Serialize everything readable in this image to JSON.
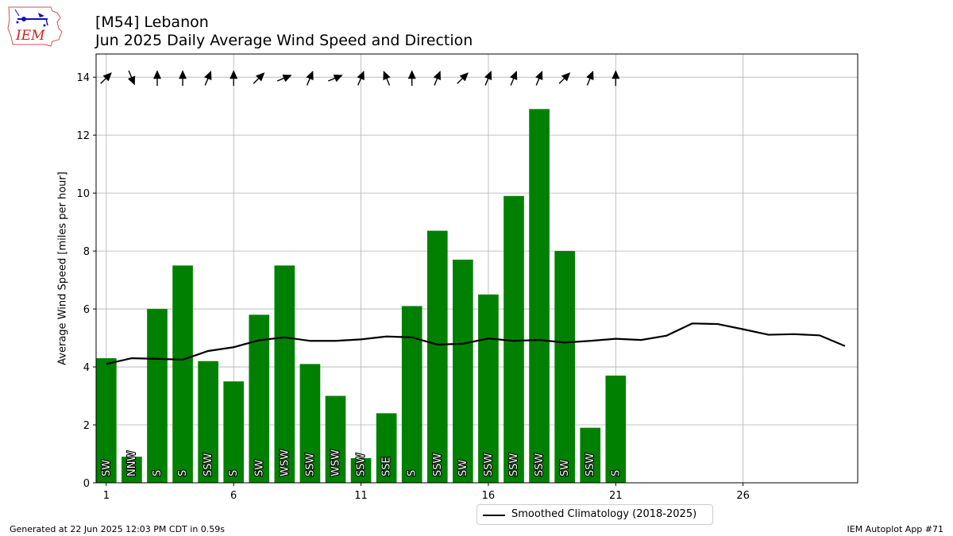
{
  "header": {
    "title_line1": "[M54] Lebanon",
    "title_line2": "Jun 2025 Daily Average Wind Speed and Direction"
  },
  "logo": {
    "text": "IEM",
    "icon": "iem-logo-icon"
  },
  "footer": {
    "generated": "Generated at 22 Jun 2025 12:03 PM CDT in 0.59s",
    "app": "IEM Autoplot App #71"
  },
  "legend": {
    "climatology_label": "Smoothed Climatology (2018-2025)"
  },
  "chart_data": {
    "type": "bar",
    "title": "[M54] Lebanon\nJun 2025 Daily Average Wind Speed and Direction",
    "xlabel": "",
    "ylabel": "Average Wind Speed [miles per hour]",
    "xlim": [
      0.6,
      30.5
    ],
    "ylim": [
      0,
      14.8
    ],
    "xticks": [
      1,
      6,
      11,
      16,
      21,
      26
    ],
    "yticks": [
      0,
      2,
      4,
      6,
      8,
      10,
      12,
      14
    ],
    "grid": true,
    "legend_position": "below-center",
    "bar_color": "#008000",
    "line_color": "#000000",
    "series": [
      {
        "type": "bar",
        "days": [
          1,
          2,
          3,
          4,
          5,
          6,
          7,
          8,
          9,
          10,
          11,
          12,
          13,
          14,
          15,
          16,
          17,
          18,
          19,
          20,
          21
        ],
        "values": [
          4.3,
          0.9,
          6.0,
          7.5,
          4.2,
          3.5,
          5.8,
          7.5,
          4.1,
          3.0,
          0.85,
          2.4,
          6.1,
          8.7,
          7.7,
          6.5,
          9.9,
          12.9,
          8.0,
          1.9,
          3.7
        ],
        "directions": [
          "SW",
          "NNW",
          "S",
          "S",
          "SSW",
          "S",
          "SW",
          "WSW",
          "SSW",
          "WSW",
          "SSW",
          "SSE",
          "S",
          "SSW",
          "SW",
          "SSW",
          "SSW",
          "SSW",
          "SW",
          "SSW",
          "S"
        ]
      },
      {
        "type": "line",
        "name": "Smoothed Climatology (2018-2025)",
        "days": [
          1,
          2,
          3,
          4,
          5,
          6,
          7,
          8,
          9,
          10,
          11,
          12,
          13,
          14,
          15,
          16,
          17,
          18,
          19,
          20,
          21,
          22,
          23,
          24,
          25,
          26,
          27,
          28,
          29,
          30
        ],
        "values": [
          4.1,
          4.3,
          4.28,
          4.25,
          4.55,
          4.68,
          4.92,
          5.02,
          4.9,
          4.9,
          4.95,
          5.05,
          5.02,
          4.77,
          4.8,
          4.98,
          4.9,
          4.93,
          4.84,
          4.9,
          4.97,
          4.93,
          5.08,
          5.5,
          5.48,
          5.3,
          5.11,
          5.13,
          5.09,
          4.72
        ]
      }
    ],
    "wind_arrows_y": 14
  }
}
